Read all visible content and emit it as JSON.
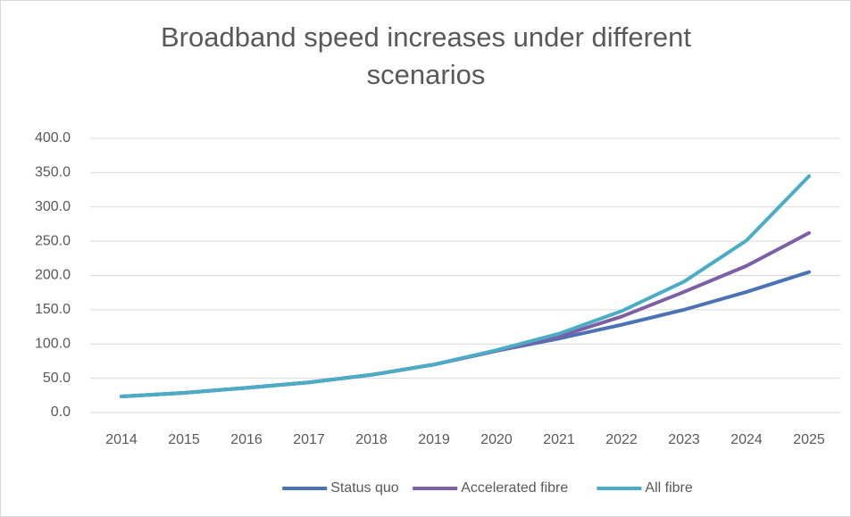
{
  "chart_data": {
    "type": "line",
    "title": "Broadband speed increases under different scenarios",
    "categories": [
      "2014",
      "2015",
      "2016",
      "2017",
      "2018",
      "2019",
      "2020",
      "2021",
      "2022",
      "2023",
      "2024",
      "2025"
    ],
    "series": [
      {
        "name": "Status quo",
        "color": "#4a72b5",
        "values": [
          23.5,
          28.7,
          36,
          44,
          55,
          70,
          90,
          108,
          128,
          150,
          176,
          205
        ]
      },
      {
        "name": "Accelerated fibre",
        "color": "#7d5fa6",
        "values": [
          23.5,
          28.7,
          36,
          44,
          55,
          70,
          90,
          111,
          140,
          176,
          214,
          262
        ]
      },
      {
        "name": "All fibre",
        "color": "#4bacc6",
        "values": [
          23.5,
          28.7,
          36,
          44,
          55,
          70,
          91,
          115,
          148,
          191,
          251,
          345
        ]
      }
    ],
    "ylim": [
      0,
      400
    ],
    "yticks": [
      {
        "value": 0,
        "label": "0.0"
      },
      {
        "value": 50,
        "label": "50.0"
      },
      {
        "value": 100,
        "label": "100.0"
      },
      {
        "value": 150,
        "label": "150.0"
      },
      {
        "value": 200,
        "label": "200.0"
      },
      {
        "value": 250,
        "label": "250.0"
      },
      {
        "value": 300,
        "label": "300.0"
      },
      {
        "value": 350,
        "label": "350.0"
      },
      {
        "value": 400,
        "label": "400.0"
      }
    ],
    "grid": true,
    "legend": "bottom"
  }
}
